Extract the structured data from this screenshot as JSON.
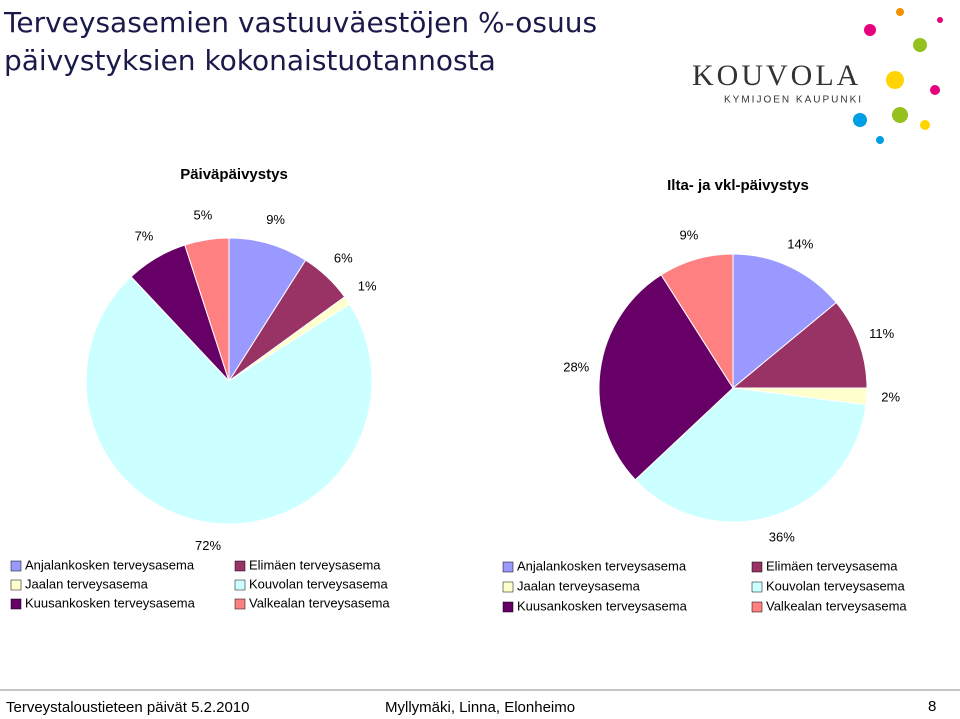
{
  "slide": {
    "title_lines": [
      "Terveysasemien vastuuväestöjen %-osuus",
      "päivystyksien kokonaistuotannosta"
    ],
    "logo": "KOUVOLA",
    "logo_sub": "KYMIJOEN KAUPUNKI",
    "footer_left": "Terveystaloustieteen päivät 5.2.2010",
    "footer_center": "Myllymäki, Linna, Elonheimo",
    "page_number": "8"
  },
  "chart_data": [
    {
      "type": "pie",
      "title": "Päiväpäivystys",
      "categories": [
        "Anjalankosken terveysasema",
        "Elimäen terveysasema",
        "Jaalan terveysasema",
        "Kouvolan terveysasema",
        "Kuusankosken terveysasema",
        "Valkealan terveysasema"
      ],
      "values": [
        9,
        6,
        1,
        72,
        7,
        5
      ],
      "value_labels": [
        "9%",
        "6%",
        "1%",
        "72%",
        "7%",
        "5%"
      ],
      "colors": [
        "#9999ff",
        "#993366",
        "#ffffcc",
        "#ccffff",
        "#660066",
        "#ff8080"
      ]
    },
    {
      "type": "pie",
      "title": "Ilta- ja vkl-päivystys",
      "categories": [
        "Anjalankosken terveysasema",
        "Elimäen terveysasema",
        "Jaalan terveysasema",
        "Kouvolan terveysasema",
        "Kuusankosken terveysasema",
        "Valkealan terveysasema"
      ],
      "values": [
        14,
        11,
        2,
        36,
        28,
        9
      ],
      "value_labels": [
        "14%",
        "11%",
        "2%",
        "36%",
        "28%",
        "9%"
      ],
      "colors": [
        "#9999ff",
        "#993366",
        "#ffffcc",
        "#ccffff",
        "#660066",
        "#ff8080"
      ]
    }
  ]
}
